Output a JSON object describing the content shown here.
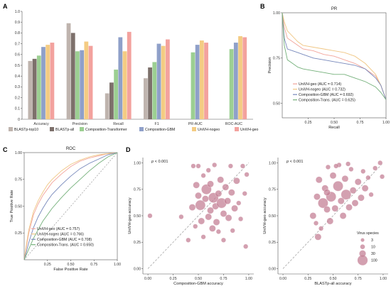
{
  "panels": {
    "a": "A",
    "b": "B",
    "c": "C",
    "d": "D"
  },
  "colors": {
    "blastp_top10": "#bfb4ae",
    "blastp_all": "#7d706b",
    "comp_transformer": "#9ccf92",
    "comp_gbm": "#8fa0c9",
    "univh_nogeo": "#f4cc83",
    "univh_geo": "#f3a29e",
    "roc_geo": "#f2a49a",
    "roc_nogeo": "#f0c683",
    "roc_gbm": "#7788bb",
    "roc_trans": "#74b07a",
    "bubble": "#c27b92",
    "diag": "#999999"
  },
  "chart_data": [
    {
      "type": "bar",
      "panel": "A",
      "categories": [
        "Accuracy",
        "Precision",
        "Recall",
        "F1",
        "PR-AUC",
        "ROC-AUC"
      ],
      "ylim": [
        0,
        1.0
      ],
      "yticks": [
        "0",
        "0.1",
        "0.2",
        "0.3",
        "0.4",
        "0.5",
        "0.6",
        "0.7",
        "0.8",
        "0.9",
        "1.0"
      ],
      "legend": [
        "BLASTp-top10",
        "BLASTp-all",
        "Composition-Transformer",
        "Composition-GBM",
        "UniVH-nogeo",
        "UniVH-geo"
      ],
      "series": [
        {
          "name": "BLASTp-top10",
          "values": [
            0.54,
            0.89,
            0.24,
            0.38,
            null,
            null
          ]
        },
        {
          "name": "BLASTp-all",
          "values": [
            0.56,
            0.8,
            0.34,
            0.48,
            null,
            null
          ]
        },
        {
          "name": "Composition-Transformer",
          "values": [
            0.59,
            0.63,
            0.46,
            0.53,
            0.62,
            0.65
          ]
        },
        {
          "name": "Composition-GBM",
          "values": [
            0.67,
            0.64,
            0.76,
            0.7,
            0.69,
            0.71
          ]
        },
        {
          "name": "UniVH-nogeo",
          "values": [
            0.69,
            0.72,
            0.63,
            0.68,
            0.73,
            0.77
          ]
        },
        {
          "name": "UniVH-geo",
          "values": [
            0.71,
            0.68,
            0.81,
            0.74,
            0.71,
            0.76
          ]
        }
      ]
    },
    {
      "type": "line",
      "panel": "B",
      "title": "PR",
      "xlabel": "Recall",
      "ylabel": "Precision",
      "xticks": [
        "0.25",
        "0.50",
        "0.75",
        "1.00"
      ],
      "yticks": [
        "0.50",
        "0.75",
        "1.00"
      ],
      "xlim": [
        0,
        1
      ],
      "ylim": [
        0.42,
        1.0
      ],
      "series": [
        {
          "name": "UniVH-geo (AUC = 0.714)",
          "color": "roc_geo",
          "x": [
            0,
            0.02,
            0.05,
            0.1,
            0.15,
            0.2,
            0.3,
            0.4,
            0.5,
            0.6,
            0.7,
            0.8,
            0.9,
            0.95,
            1.0
          ],
          "y": [
            1.0,
            0.92,
            0.86,
            0.84,
            0.82,
            0.8,
            0.79,
            0.77,
            0.76,
            0.74,
            0.72,
            0.69,
            0.65,
            0.6,
            0.52
          ]
        },
        {
          "name": "UniVH-nogeo (AUC = 0.732)",
          "color": "roc_nogeo",
          "x": [
            0,
            0.02,
            0.05,
            0.1,
            0.15,
            0.2,
            0.3,
            0.4,
            0.5,
            0.6,
            0.7,
            0.8,
            0.9,
            0.95,
            1.0
          ],
          "y": [
            1.0,
            0.95,
            0.9,
            0.87,
            0.84,
            0.82,
            0.81,
            0.8,
            0.79,
            0.78,
            0.76,
            0.72,
            0.66,
            0.6,
            0.52
          ]
        },
        {
          "name": "Composition-GBM (AUC = 0.692)",
          "color": "roc_gbm",
          "x": [
            0,
            0.02,
            0.05,
            0.1,
            0.15,
            0.2,
            0.3,
            0.4,
            0.5,
            0.6,
            0.7,
            0.8,
            0.9,
            0.95,
            1.0
          ],
          "y": [
            1.0,
            0.86,
            0.8,
            0.79,
            0.78,
            0.77,
            0.75,
            0.74,
            0.73,
            0.72,
            0.71,
            0.69,
            0.64,
            0.6,
            0.52
          ]
        },
        {
          "name": "Composition-Trans. (AUC = 0.625)",
          "color": "roc_trans",
          "x": [
            0,
            0.02,
            0.05,
            0.1,
            0.15,
            0.2,
            0.3,
            0.4,
            0.5,
            0.6,
            0.7,
            0.8,
            0.9,
            0.95,
            1.0
          ],
          "y": [
            1.0,
            0.82,
            0.74,
            0.72,
            0.7,
            0.69,
            0.68,
            0.67,
            0.66,
            0.66,
            0.64,
            0.62,
            0.59,
            0.56,
            0.52
          ]
        }
      ]
    },
    {
      "type": "line",
      "panel": "C",
      "title": "ROC",
      "xlabel": "False Positive Rate",
      "ylabel": "True Positive Rate",
      "xticks": [
        "0.25",
        "0.50",
        "0.75",
        "1.00"
      ],
      "yticks": [
        "0.25",
        "0.50",
        "0.75",
        "1.00"
      ],
      "xlim": [
        0,
        1
      ],
      "ylim": [
        0,
        1
      ],
      "series": [
        {
          "name": "UniVH-geo (AUC = 0.757)",
          "color": "roc_geo",
          "x": [
            0,
            0.02,
            0.05,
            0.1,
            0.15,
            0.2,
            0.25,
            0.3,
            0.4,
            0.5,
            0.6,
            0.7,
            0.8,
            0.9,
            1.0
          ],
          "y": [
            0,
            0.1,
            0.25,
            0.42,
            0.52,
            0.6,
            0.66,
            0.72,
            0.8,
            0.87,
            0.92,
            0.95,
            0.97,
            0.99,
            1.0
          ]
        },
        {
          "name": "UniVH-nogeo (AUC = 0.766)",
          "color": "roc_nogeo",
          "x": [
            0,
            0.02,
            0.05,
            0.1,
            0.15,
            0.2,
            0.25,
            0.3,
            0.4,
            0.5,
            0.6,
            0.7,
            0.8,
            0.9,
            1.0
          ],
          "y": [
            0,
            0.12,
            0.28,
            0.45,
            0.55,
            0.63,
            0.7,
            0.75,
            0.83,
            0.89,
            0.93,
            0.96,
            0.98,
            0.99,
            1.0
          ]
        },
        {
          "name": "Composition-GBM (AUC = 0.708)",
          "color": "roc_gbm",
          "x": [
            0,
            0.02,
            0.05,
            0.1,
            0.15,
            0.2,
            0.25,
            0.3,
            0.4,
            0.5,
            0.6,
            0.7,
            0.8,
            0.9,
            1.0
          ],
          "y": [
            0,
            0.06,
            0.16,
            0.3,
            0.4,
            0.48,
            0.55,
            0.61,
            0.7,
            0.78,
            0.85,
            0.9,
            0.94,
            0.98,
            1.0
          ]
        },
        {
          "name": "Composition-Trans. (AUC = 0.650)",
          "color": "roc_trans",
          "x": [
            0,
            0.02,
            0.05,
            0.1,
            0.15,
            0.2,
            0.25,
            0.3,
            0.4,
            0.5,
            0.6,
            0.7,
            0.8,
            0.9,
            1.0
          ],
          "y": [
            0,
            0.04,
            0.1,
            0.2,
            0.28,
            0.36,
            0.42,
            0.48,
            0.58,
            0.67,
            0.75,
            0.83,
            0.9,
            0.96,
            1.0
          ]
        }
      ]
    },
    {
      "type": "scatter",
      "panel": "D-left",
      "annotation": "p < 0.001",
      "xlabel": "Composition-GBM accuracy",
      "ylabel": "UniVH-geo accuracy",
      "xticks": [
        "0.00",
        "0.25",
        "0.50",
        "0.75",
        "1.00"
      ],
      "yticks": [
        "0.00",
        "0.25",
        "0.50",
        "0.75",
        "1.00"
      ],
      "xlim": [
        -0.05,
        1.05
      ],
      "ylim": [
        -0.05,
        1.05
      ],
      "points": [
        {
          "x": 0.02,
          "y": 0.5,
          "s": 10
        },
        {
          "x": 0.33,
          "y": 0.49,
          "s": 10
        },
        {
          "x": 0.4,
          "y": 0.27,
          "s": 10
        },
        {
          "x": 0.44,
          "y": 0.58,
          "s": 30
        },
        {
          "x": 0.45,
          "y": 0.97,
          "s": 10
        },
        {
          "x": 0.5,
          "y": 0.97,
          "s": 10
        },
        {
          "x": 0.48,
          "y": 0.79,
          "s": 30
        },
        {
          "x": 0.5,
          "y": 0.69,
          "s": 30
        },
        {
          "x": 0.52,
          "y": 0.6,
          "s": 100
        },
        {
          "x": 0.53,
          "y": 0.45,
          "s": 30
        },
        {
          "x": 0.55,
          "y": 0.88,
          "s": 10
        },
        {
          "x": 0.57,
          "y": 0.66,
          "s": 30
        },
        {
          "x": 0.58,
          "y": 0.75,
          "s": 100
        },
        {
          "x": 0.6,
          "y": 0.49,
          "s": 30
        },
        {
          "x": 0.6,
          "y": 0.93,
          "s": 10
        },
        {
          "x": 0.62,
          "y": 0.55,
          "s": 30
        },
        {
          "x": 0.62,
          "y": 0.8,
          "s": 30
        },
        {
          "x": 0.64,
          "y": 0.38,
          "s": 30
        },
        {
          "x": 0.65,
          "y": 0.67,
          "s": 100
        },
        {
          "x": 0.66,
          "y": 0.98,
          "s": 10
        },
        {
          "x": 0.67,
          "y": 0.59,
          "s": 30
        },
        {
          "x": 0.68,
          "y": 0.44,
          "s": 30
        },
        {
          "x": 0.7,
          "y": 0.71,
          "s": 30
        },
        {
          "x": 0.7,
          "y": 0.35,
          "s": 10
        },
        {
          "x": 0.72,
          "y": 0.84,
          "s": 30
        },
        {
          "x": 0.73,
          "y": 0.62,
          "s": 100
        },
        {
          "x": 0.75,
          "y": 0.52,
          "s": 30
        },
        {
          "x": 0.75,
          "y": 0.27,
          "s": 10
        },
        {
          "x": 0.77,
          "y": 0.77,
          "s": 30
        },
        {
          "x": 0.79,
          "y": 0.64,
          "s": 30
        },
        {
          "x": 0.8,
          "y": 0.48,
          "s": 30
        },
        {
          "x": 0.82,
          "y": 0.97,
          "s": 10
        },
        {
          "x": 0.83,
          "y": 0.72,
          "s": 30
        },
        {
          "x": 0.84,
          "y": 0.36,
          "s": 10
        },
        {
          "x": 0.86,
          "y": 0.57,
          "s": 30
        },
        {
          "x": 0.88,
          "y": 0.83,
          "s": 30
        },
        {
          "x": 0.9,
          "y": 0.62,
          "s": 10
        },
        {
          "x": 0.92,
          "y": 0.47,
          "s": 10
        },
        {
          "x": 0.94,
          "y": 0.97,
          "s": 10
        },
        {
          "x": 0.96,
          "y": 0.71,
          "s": 10
        },
        {
          "x": 0.97,
          "y": 0.21,
          "s": 10
        },
        {
          "x": 0.98,
          "y": 0.89,
          "s": 10
        },
        {
          "x": 0.55,
          "y": 0.3,
          "s": 10
        },
        {
          "x": 0.47,
          "y": 0.4,
          "s": 10
        }
      ]
    },
    {
      "type": "scatter",
      "panel": "D-right",
      "annotation": "p < 0.001",
      "xlabel": "BLASTp-all accuracy",
      "ylabel": "UniVH-geo accuracy",
      "xticks": [
        "0.00",
        "0.25",
        "0.50",
        "0.75",
        "1.00"
      ],
      "yticks": [
        "0.00",
        "0.25",
        "0.50",
        "0.75",
        "1.00"
      ],
      "xlim": [
        -0.05,
        1.05
      ],
      "ylim": [
        -0.05,
        1.05
      ],
      "size_legend_title": "Virus species",
      "size_legend": [
        3,
        10,
        30,
        100
      ],
      "points": [
        {
          "x": 0.3,
          "y": 0.5,
          "s": 30
        },
        {
          "x": 0.33,
          "y": 0.43,
          "s": 10
        },
        {
          "x": 0.35,
          "y": 0.3,
          "s": 30
        },
        {
          "x": 0.36,
          "y": 0.84,
          "s": 30
        },
        {
          "x": 0.4,
          "y": 0.62,
          "s": 100
        },
        {
          "x": 0.42,
          "y": 0.76,
          "s": 30
        },
        {
          "x": 0.44,
          "y": 0.56,
          "s": 30
        },
        {
          "x": 0.45,
          "y": 0.96,
          "s": 10
        },
        {
          "x": 0.47,
          "y": 0.45,
          "s": 30
        },
        {
          "x": 0.48,
          "y": 0.68,
          "s": 100
        },
        {
          "x": 0.5,
          "y": 0.88,
          "s": 30
        },
        {
          "x": 0.52,
          "y": 0.57,
          "s": 30
        },
        {
          "x": 0.55,
          "y": 0.78,
          "s": 100
        },
        {
          "x": 0.56,
          "y": 0.98,
          "s": 10
        },
        {
          "x": 0.58,
          "y": 0.64,
          "s": 30
        },
        {
          "x": 0.6,
          "y": 0.5,
          "s": 30
        },
        {
          "x": 0.62,
          "y": 0.85,
          "s": 30
        },
        {
          "x": 0.63,
          "y": 0.7,
          "s": 100
        },
        {
          "x": 0.66,
          "y": 0.58,
          "s": 30
        },
        {
          "x": 0.68,
          "y": 0.94,
          "s": 10
        },
        {
          "x": 0.7,
          "y": 0.74,
          "s": 30
        },
        {
          "x": 0.72,
          "y": 0.62,
          "s": 30
        },
        {
          "x": 0.75,
          "y": 0.82,
          "s": 30
        },
        {
          "x": 0.78,
          "y": 0.67,
          "s": 30
        },
        {
          "x": 0.8,
          "y": 0.92,
          "s": 10
        },
        {
          "x": 0.82,
          "y": 0.76,
          "s": 30
        },
        {
          "x": 0.85,
          "y": 0.86,
          "s": 10
        },
        {
          "x": 0.88,
          "y": 0.7,
          "s": 10
        },
        {
          "x": 0.92,
          "y": 0.95,
          "s": 10
        },
        {
          "x": 0.97,
          "y": 1.0,
          "s": 10
        },
        {
          "x": 0.99,
          "y": 0.87,
          "s": 10
        },
        {
          "x": 0.65,
          "y": 0.99,
          "s": 10
        },
        {
          "x": 0.53,
          "y": 0.97,
          "s": 10
        },
        {
          "x": 0.34,
          "y": 0.68,
          "s": 30
        },
        {
          "x": 0.38,
          "y": 0.38,
          "s": 10
        },
        {
          "x": 0.44,
          "y": 0.72,
          "s": 30
        }
      ]
    }
  ]
}
